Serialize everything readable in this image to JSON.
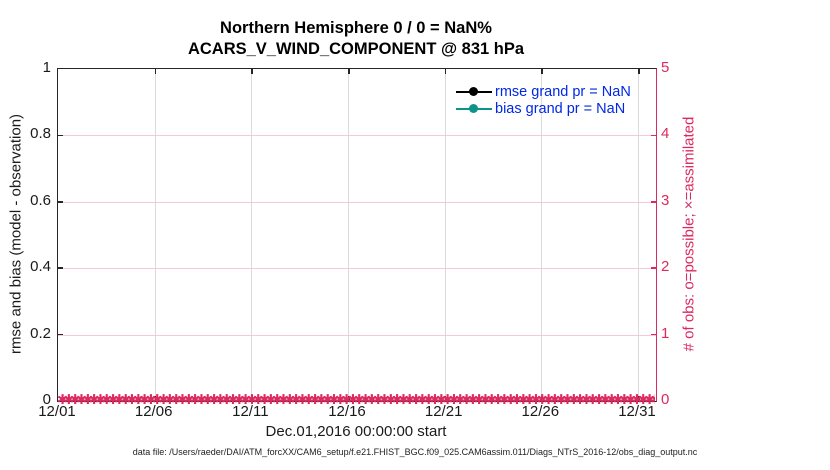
{
  "figure": {
    "title_line1": "Northern Hemisphere 0 / 0 = NaN%",
    "title_line2": "ACARS_V_WIND_COMPONENT @ 831 hPa",
    "left_axis": {
      "label": "rmse and bias (model - observation)",
      "ticks": [
        "0",
        "0.2",
        "0.4",
        "0.6",
        "0.8",
        "1"
      ],
      "color": "#262626"
    },
    "right_axis": {
      "label": "# of obs: o=possible; ×=assimilated",
      "ticks": [
        "0",
        "1",
        "2",
        "3",
        "4",
        "5"
      ],
      "color": "#DB2A60"
    },
    "x_axis": {
      "label": "Dec.01,2016 00:00:00 start",
      "ticks": [
        "12/01",
        "12/06",
        "12/11",
        "12/16",
        "12/21",
        "12/26",
        "12/31"
      ]
    },
    "legend": [
      {
        "label": "rmse grand pr = NaN",
        "color": "#000000"
      },
      {
        "label": "bias grand pr = NaN",
        "color": "#0D9488"
      }
    ],
    "marker_band": {
      "char": "✱",
      "count": 115,
      "color": "#DB2A60"
    },
    "footer": "data file: /Users/raeder/DAI/ATM_forcXX/CAM6_setup/f.e21.FHIST_BGC.f09_025.CAM6assim.011/Diags_NTrS_2016-12/obs_diag_output.nc"
  },
  "chart_data": {
    "type": "line",
    "title": "Northern Hemisphere 0 / 0 = NaN%",
    "subtitle": "ACARS_V_WIND_COMPONENT @ 831 hPa",
    "xlabel": "Dec.01,2016 00:00:00 start",
    "x_ticks": [
      "12/01",
      "12/06",
      "12/11",
      "12/16",
      "12/21",
      "12/26",
      "12/31"
    ],
    "x_range": [
      "2016-12-01",
      "2016-12-31"
    ],
    "left_axis": {
      "ylabel": "rmse and bias (model - observation)",
      "ylim": [
        0,
        1
      ],
      "tick_step": 0.2
    },
    "right_axis": {
      "ylabel": "# of obs: o=possible; ×=assimilated",
      "ylim": [
        0,
        5
      ],
      "tick_step": 1
    },
    "grid": true,
    "legend_position": "top-right-inside",
    "series": [
      {
        "name": "rmse grand pr = NaN",
        "axis": "left",
        "color": "#000000",
        "marker": "circle",
        "values_constant": "NaN",
        "n_points": 0,
        "note": "no line drawn; all values NaN"
      },
      {
        "name": "bias grand pr = NaN",
        "axis": "left",
        "color": "#0D9488",
        "marker": "circle",
        "values_constant": "NaN",
        "n_points": 0,
        "note": "no line drawn; all values NaN"
      },
      {
        "name": "# of obs possible (o)",
        "axis": "right",
        "color": "#DB2A60",
        "marker": "o",
        "values_constant": 0,
        "n_points": 124,
        "note": "all zero along y=0 from 12/01 to 12/31"
      },
      {
        "name": "# of obs assimilated (×)",
        "axis": "right",
        "color": "#DB2A60",
        "marker": "×",
        "values_constant": 0,
        "n_points": 124,
        "note": "dense × markers overlapping at y=0 across full x range"
      }
    ]
  }
}
